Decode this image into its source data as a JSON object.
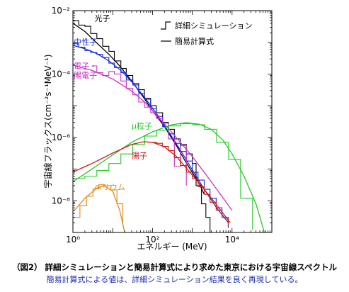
{
  "caption": {
    "title": "（図2） 詳細シミュレーションと簡易計算式により求めた東京における宇宙線スペクトル",
    "subtitle": "簡易計算式による値は、詳細シミュレーション結果を良く再現している。"
  },
  "chart_data": {
    "type": "line",
    "xlabel": "エネルギー (MeV)",
    "ylabel": "宇宙線フラックス(cm⁻²s⁻¹MeV⁻¹)",
    "x_scale": "log",
    "y_scale": "log",
    "xlim": [
      1,
      100000
    ],
    "ylim": [
      1e-09,
      0.01
    ],
    "x_ticks": [
      {
        "value": 1,
        "label": "10⁰"
      },
      {
        "value": 100,
        "label": "10²"
      },
      {
        "value": 10000,
        "label": "10⁴"
      }
    ],
    "y_ticks": [
      {
        "value": 0.01,
        "label": "10⁻²"
      },
      {
        "value": 0.0001,
        "label": "10⁻⁴"
      },
      {
        "value": 1e-06,
        "label": "10⁻⁶"
      },
      {
        "value": 1e-08,
        "label": "10⁻⁸"
      }
    ],
    "grid": false,
    "legend": {
      "position": "top-right",
      "entries": [
        {
          "label": "詳細シミュレーション",
          "style": "step"
        },
        {
          "label": "簡易計算式",
          "style": "line"
        }
      ]
    },
    "series": [
      {
        "name": "光子",
        "color": "#000000",
        "line": [
          [
            1,
            0.004
          ],
          [
            2,
            0.0022
          ],
          [
            4,
            0.00095
          ],
          [
            8,
            0.00042
          ],
          [
            15,
            0.00018
          ],
          [
            30,
            6e-05
          ],
          [
            60,
            1.8e-05
          ],
          [
            100,
            7e-06
          ],
          [
            200,
            2.2e-06
          ],
          [
            400,
            5.5e-07
          ],
          [
            700,
            1.6e-07
          ],
          [
            1500,
            3.5e-08
          ],
          [
            2000,
            1.6e-08
          ]
        ],
        "step": [
          [
            1,
            0.0048
          ],
          [
            1.4,
            0.0035
          ],
          [
            2,
            0.0032
          ],
          [
            2.8,
            0.0019
          ],
          [
            4,
            0.0013
          ],
          [
            5.6,
            0.00075
          ],
          [
            8,
            0.00052
          ],
          [
            11,
            0.00026
          ],
          [
            16,
            0.00015
          ],
          [
            22,
            9e-05
          ],
          [
            32,
            5e-05
          ],
          [
            45,
            3.2e-05
          ],
          [
            63,
            1.7e-05
          ],
          [
            90,
            1e-05
          ],
          [
            125,
            6e-06
          ],
          [
            180,
            3e-06
          ],
          [
            250,
            1.8e-06
          ],
          [
            355,
            9e-07
          ],
          [
            500,
            6e-07
          ],
          [
            710,
            3e-07
          ],
          [
            1000,
            1.5e-07
          ],
          [
            1250,
            3e-08
          ],
          [
            1700,
            8e-09
          ],
          [
            2200,
            3e-09
          ],
          [
            2800,
            1e-09
          ]
        ]
      },
      {
        "name": "中性子",
        "color": "#1a2ad2",
        "line": [
          [
            1,
            0.0008
          ],
          [
            2,
            0.00063
          ],
          [
            4,
            0.00044
          ],
          [
            8,
            0.00026
          ],
          [
            16,
            0.00013
          ],
          [
            32,
            5.2e-05
          ],
          [
            64,
            1.8e-05
          ],
          [
            128,
            5.5e-06
          ],
          [
            256,
            1.5e-06
          ],
          [
            512,
            3.8e-07
          ],
          [
            1024,
            9e-08
          ],
          [
            2048,
            2.2e-08
          ],
          [
            4096,
            6e-09
          ],
          [
            8192,
            2e-09
          ]
        ],
        "step": [
          [
            1,
            0.0009
          ],
          [
            1.4,
            0.0007
          ],
          [
            2,
            0.00055
          ],
          [
            2.8,
            0.00048
          ],
          [
            4,
            0.00042
          ],
          [
            5.6,
            0.00033
          ],
          [
            8,
            0.00022
          ],
          [
            11,
            0.00016
          ],
          [
            16,
            0.00011
          ],
          [
            22,
            6.5e-05
          ],
          [
            32,
            4.5e-05
          ],
          [
            45,
            2.4e-05
          ],
          [
            63,
            1.6e-05
          ],
          [
            90,
            8e-06
          ],
          [
            125,
            4.6e-06
          ],
          [
            180,
            2.2e-06
          ],
          [
            250,
            1.3e-06
          ],
          [
            355,
            6.5e-07
          ],
          [
            500,
            3.6e-07
          ],
          [
            710,
            1.8e-07
          ],
          [
            1000,
            8e-08
          ],
          [
            1400,
            4.5e-08
          ],
          [
            2000,
            2.3e-08
          ],
          [
            2800,
            1.2e-08
          ],
          [
            4000,
            6e-09
          ],
          [
            5600,
            3e-09
          ],
          [
            8000,
            1.4e-09
          ]
        ]
      },
      {
        "name": "電子・陽電子",
        "color": "#c832c8",
        "line": [
          [
            1,
            0.00019
          ],
          [
            3,
            0.00013
          ],
          [
            10,
            7e-05
          ],
          [
            30,
            2.9e-05
          ],
          [
            60,
            1.4e-05
          ],
          [
            100,
            7e-06
          ],
          [
            300,
            1.5e-06
          ],
          [
            1000,
            2.5e-07
          ],
          [
            3000,
            4e-08
          ],
          [
            10000,
            5e-09
          ]
        ],
        "step": [
          [
            3,
            0.00018
          ],
          [
            4,
            0.00011
          ],
          [
            5.6,
            9e-05
          ],
          [
            8,
            0.00012
          ],
          [
            11,
            0.0001
          ],
          [
            16,
            6e-05
          ],
          [
            22,
            3.5e-05
          ],
          [
            32,
            2.2e-05
          ],
          [
            45,
            1.3e-05
          ],
          [
            63,
            9e-06
          ],
          [
            90,
            6e-06
          ],
          [
            125,
            4e-06
          ],
          [
            180,
            2.8e-06
          ],
          [
            250,
            9e-07
          ],
          [
            355,
            1.2e-07
          ],
          [
            500,
            5.5e-07
          ],
          [
            710,
            3e-08
          ]
        ]
      },
      {
        "name": "μ粒子",
        "color": "#24c824",
        "line": [
          [
            1,
            4e-08
          ],
          [
            3,
            1e-07
          ],
          [
            10,
            2.8e-07
          ],
          [
            30,
            7e-07
          ],
          [
            100,
            1.5e-06
          ],
          [
            300,
            2.5e-06
          ],
          [
            700,
            2.9e-06
          ],
          [
            1500,
            2.6e-06
          ],
          [
            3000,
            1.8e-06
          ],
          [
            6000,
            8e-07
          ],
          [
            10000,
            3e-07
          ],
          [
            20000,
            6e-08
          ],
          [
            40000,
            8e-09
          ],
          [
            65000,
            1e-09
          ]
        ],
        "step": [
          [
            1,
            5e-08
          ],
          [
            2,
            6e-08
          ],
          [
            4,
            9e-08
          ],
          [
            8,
            1.5e-07
          ],
          [
            16,
            3e-07
          ],
          [
            32,
            6e-07
          ],
          [
            64,
            1.1e-06
          ],
          [
            128,
            1.7e-06
          ],
          [
            256,
            2.3e-06
          ],
          [
            512,
            2.7e-06
          ],
          [
            1024,
            2.5e-06
          ],
          [
            2048,
            1.8e-06
          ],
          [
            4096,
            7e-07
          ],
          [
            8192,
            2e-07
          ],
          [
            16384,
            1.2e-08
          ],
          [
            32768,
            1.2e-09
          ]
        ]
      },
      {
        "name": "陽子",
        "color": "#cc1a1a",
        "line": [
          [
            1,
            8e-08
          ],
          [
            3,
            1.5e-07
          ],
          [
            10,
            3.2e-07
          ],
          [
            30,
            6e-07
          ],
          [
            60,
            7.3e-07
          ],
          [
            100,
            7e-07
          ],
          [
            200,
            5e-07
          ],
          [
            400,
            2.5e-07
          ],
          [
            800,
            9e-08
          ],
          [
            1600,
            3.2e-08
          ],
          [
            3200,
            1.1e-08
          ],
          [
            6000,
            4e-09
          ],
          [
            9000,
            2e-09
          ]
        ],
        "step": [
          [
            100,
            7e-07
          ],
          [
            130,
            6.5e-07
          ],
          [
            180,
            5.2e-07
          ],
          [
            250,
            3.8e-07
          ],
          [
            355,
            2.3e-07
          ],
          [
            500,
            1.3e-07
          ],
          [
            710,
            8e-08
          ],
          [
            1000,
            5e-08
          ],
          [
            1400,
            2.8e-08
          ],
          [
            2000,
            1.6e-08
          ],
          [
            2800,
            9e-09
          ],
          [
            4000,
            5e-09
          ],
          [
            5600,
            3e-09
          ],
          [
            8000,
            1.6e-09
          ]
        ]
      },
      {
        "name": "ヘリウム",
        "color": "#e08a1e",
        "line": [
          [
            1.1,
            5e-09
          ],
          [
            2,
            1.2e-08
          ],
          [
            4,
            2.5e-08
          ],
          [
            6,
            3e-08
          ],
          [
            10,
            2e-08
          ],
          [
            15,
            5e-09
          ],
          [
            20,
            1e-09
          ]
        ],
        "step": [
          [
            1,
            3e-09
          ],
          [
            1.5,
            7e-09
          ],
          [
            2.2,
            1.4e-08
          ],
          [
            3.2,
            2.4e-08
          ],
          [
            4.5,
            3.2e-08
          ],
          [
            6.4,
            3e-08
          ],
          [
            9,
            2.2e-08
          ],
          [
            12.8,
            8e-09
          ],
          [
            18,
            2e-09
          ]
        ]
      }
    ]
  }
}
